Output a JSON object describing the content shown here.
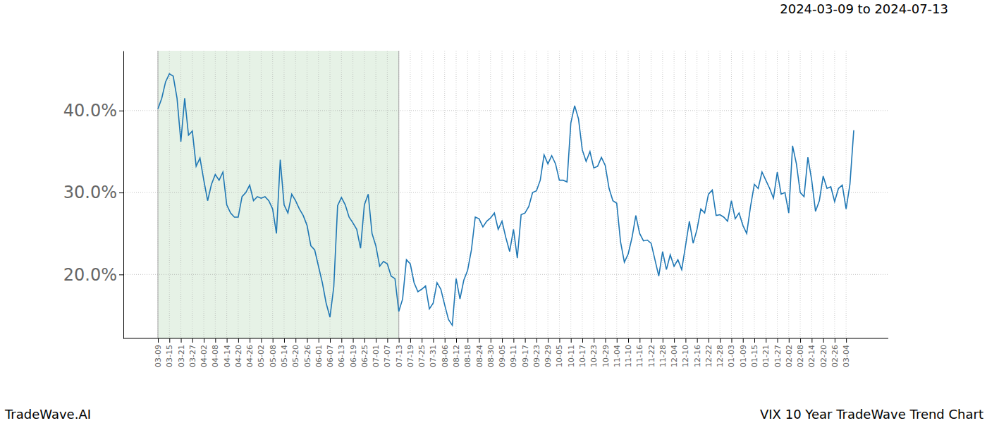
{
  "chart_data": {
    "type": "line",
    "title": "VIX 10 Year TradeWave Trend Chart",
    "subtitle": "2024-03-09 to 2024-07-13",
    "brand": "TradeWave.AI",
    "color": "#1f77b4",
    "grid": true,
    "highlight": {
      "start": "03-09",
      "end": "07-13"
    },
    "categories": [
      "03-09",
      null,
      null,
      "03-15",
      null,
      null,
      "03-21",
      null,
      null,
      "03-27",
      null,
      null,
      "04-02",
      null,
      null,
      "04-08",
      null,
      null,
      "04-14",
      null,
      null,
      "04-20",
      null,
      null,
      "04-26",
      null,
      null,
      "05-02",
      null,
      null,
      "05-08",
      null,
      null,
      "05-14",
      null,
      null,
      "05-20",
      null,
      null,
      "05-26",
      null,
      null,
      "06-01",
      null,
      null,
      "06-07",
      null,
      null,
      "06-13",
      null,
      null,
      "06-19",
      null,
      null,
      "06-25",
      null,
      null,
      "07-01",
      null,
      null,
      "07-07",
      null,
      null,
      "07-13",
      null,
      null,
      "07-19",
      null,
      null,
      "07-25",
      null,
      null,
      "07-31",
      null,
      null,
      "08-06",
      null,
      null,
      "08-12",
      null,
      null,
      "08-18",
      null,
      null,
      "08-24",
      null,
      null,
      "08-30",
      null,
      null,
      "09-05",
      null,
      null,
      "09-11",
      null,
      null,
      "09-17",
      null,
      null,
      "09-23",
      null,
      null,
      "09-29",
      null,
      null,
      "10-05",
      null,
      null,
      "10-11",
      null,
      null,
      "10-17",
      null,
      null,
      "10-23",
      null,
      null,
      "10-29",
      null,
      null,
      "11-04",
      null,
      null,
      "11-10",
      null,
      null,
      "11-16",
      null,
      null,
      "11-22",
      null,
      null,
      "11-28",
      null,
      null,
      "12-04",
      null,
      null,
      "12-10",
      null,
      null,
      "12-16",
      null,
      null,
      "12-22",
      null,
      null,
      "12-28",
      null,
      null,
      "01-03",
      null,
      null,
      "01-09",
      null,
      null,
      "01-15",
      null,
      null,
      "01-21",
      null,
      null,
      "01-27",
      null,
      null,
      "02-02",
      null,
      null,
      "02-08",
      null,
      null,
      "02-14",
      null,
      null,
      "02-20",
      null,
      null,
      "02-26",
      null,
      null,
      "03-04",
      null,
      null
    ],
    "values": [
      40.2,
      41.5,
      43.5,
      44.5,
      44.2,
      41.5,
      36.2,
      41.5,
      37,
      37.5,
      33.2,
      34.2,
      31.5,
      29,
      31,
      32.2,
      31.5,
      32.5,
      28.5,
      27.5,
      27,
      27,
      29.5,
      30,
      30.9,
      29,
      29.5,
      29.3,
      29.5,
      29,
      28,
      25,
      34,
      28.5,
      27.5,
      29.8,
      29,
      28,
      27.2,
      26,
      23.5,
      23,
      21,
      19,
      16.5,
      14.8,
      18.5,
      28.4,
      29.4,
      28.5,
      27,
      26.3,
      25.5,
      23.2,
      28.5,
      29.8,
      25,
      23.5,
      21,
      21.6,
      21.3,
      19.8,
      19.5,
      15.5,
      17,
      21.8,
      21.3,
      19,
      17.9,
      18.2,
      18.6,
      15.8,
      16.5,
      19,
      18.2,
      16.3,
      14.5,
      13.8,
      19.5,
      17,
      19.3,
      20.5,
      23,
      27,
      26.8,
      25.8,
      26.5,
      26.9,
      27.5,
      25.5,
      26.5,
      24.5,
      22.8,
      25.5,
      22,
      27.3,
      27.5,
      28.3,
      30,
      30.2,
      31.5,
      34.6,
      33.5,
      34.5,
      33.5,
      31.5,
      31.5,
      31.3,
      38.5,
      40.6,
      39,
      35.2,
      33.8,
      35,
      33,
      33.2,
      34.3,
      33.3,
      30.5,
      29,
      28.7,
      24,
      21.5,
      22.5,
      24.5,
      27.2,
      25,
      24.1,
      24.2,
      23.8,
      21.8,
      19.8,
      22.8,
      20.6,
      22.4,
      21,
      21.8,
      20.6,
      23.5,
      26.5,
      23.8,
      25.5,
      28,
      27.5,
      29.8,
      30.3,
      27.2,
      27.3,
      27,
      26.5,
      29,
      26.8,
      27.5,
      26,
      25,
      28.3,
      31,
      30.5,
      32.5,
      31.5,
      30.5,
      29.3,
      32.5,
      29.8,
      30,
      27.5,
      35.7,
      33.5,
      30,
      29.5,
      34.3,
      31.5,
      27.7,
      29,
      32,
      30.5,
      30.7,
      28.9,
      30.5,
      30.9,
      28,
      31,
      37.6
    ],
    "ylim": [
      12.2,
      47.3
    ],
    "yticks": [
      {
        "value": 20,
        "label": "20.0%"
      },
      {
        "value": 30,
        "label": "30.0%"
      },
      {
        "value": 40,
        "label": "40.0%"
      }
    ]
  }
}
